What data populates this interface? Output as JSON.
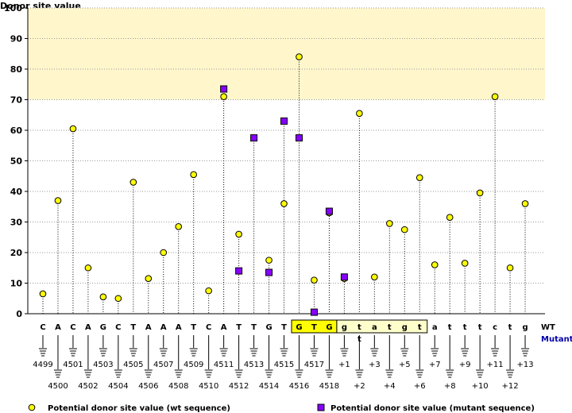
{
  "chart_data": {
    "type": "scatter",
    "ylabel": "Donor site value",
    "ylim": [
      0,
      100
    ],
    "yticks": [
      "0",
      "10",
      "20",
      "30",
      "40",
      "50",
      "60",
      "70",
      "80",
      "90",
      "100"
    ],
    "highlight_band": {
      "from": 70,
      "to": 100,
      "color": "#fff6cc"
    },
    "row_labels": {
      "wt": "WT",
      "mutant": "Mutant"
    },
    "wt_bases": [
      "C",
      "A",
      "C",
      "A",
      "G",
      "C",
      "T",
      "A",
      "A",
      "A",
      "T",
      "C",
      "A",
      "T",
      "T",
      "G",
      "T",
      "G",
      "T",
      "G",
      "g",
      "t",
      "a",
      "t",
      "g",
      "t",
      "a",
      "t",
      "t",
      "t",
      "c",
      "t",
      "g"
    ],
    "mutant_bases": {
      "21": "t"
    },
    "positions": [
      "4499",
      "4500",
      "4501",
      "4502",
      "4503",
      "4504",
      "4505",
      "4506",
      "4507",
      "4508",
      "4509",
      "4510",
      "4511",
      "4512",
      "4513",
      "4514",
      "4515",
      "4516",
      "4517",
      "4518",
      "+1",
      "+2",
      "+3",
      "+4",
      "+5",
      "+6",
      "+7",
      "+8",
      "+9",
      "+10",
      "+11",
      "+12",
      "+13"
    ],
    "exon_box_range": [
      17,
      19
    ],
    "intron_box_range": [
      20,
      25
    ],
    "series": [
      {
        "name": "Potential donor site value (wt sequence)",
        "color": "#ffff00",
        "values": [
          6.5,
          37,
          60.5,
          15,
          5.5,
          5,
          43,
          11.5,
          20,
          28.5,
          45.5,
          7.5,
          71,
          26,
          57.5,
          17.5,
          36,
          84,
          11,
          33,
          11.5,
          65.5,
          12,
          29.5,
          27.5,
          44.5,
          16,
          31.5,
          16.5,
          39.5,
          71,
          15,
          36
        ]
      },
      {
        "name": "Potential donor site value (mutant sequence)",
        "color": "#8800ff",
        "points": [
          [
            12,
            73.5
          ],
          [
            13,
            14
          ],
          [
            14,
            57.5
          ],
          [
            15,
            13.5
          ],
          [
            16,
            63
          ],
          [
            17,
            57.5
          ],
          [
            18,
            0.5
          ],
          [
            19,
            33.5
          ],
          [
            20,
            12
          ]
        ]
      }
    ]
  }
}
